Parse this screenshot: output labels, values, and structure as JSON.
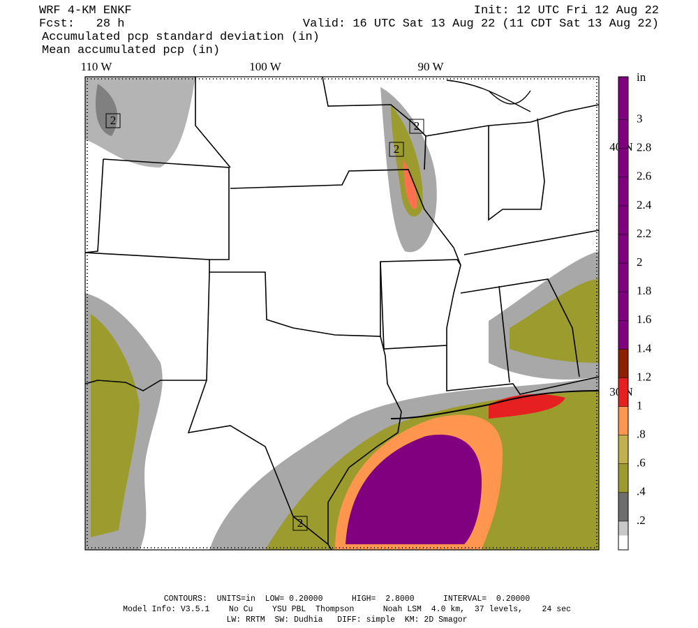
{
  "header": {
    "model": "WRF 4-KM ENKF",
    "init": "Init: 12 UTC Fri 12 Aug 22",
    "fcst": "Fcst:   28 h",
    "valid": "Valid: 16 UTC Sat 13 Aug 22 (11 CDT Sat 13 Aug 22)",
    "field_1": "Accumulated pcp standard deviation (in)",
    "field_2": "Mean accumulated pcp (in)"
  },
  "map": {
    "longitude_labels": [
      "110 W",
      "100 W",
      "90 W"
    ],
    "latitude_labels": [
      "40 N",
      "30 N"
    ],
    "contour_labels": [
      "2",
      "2",
      "2",
      "2"
    ]
  },
  "colorbar": {
    "unit": "in",
    "lim": [
      0,
      3.3
    ],
    "ticks": [
      {
        "value": 0.2,
        "label": ".2"
      },
      {
        "value": 0.4,
        "label": ".4"
      },
      {
        "value": 0.6,
        "label": ".6"
      },
      {
        "value": 0.8,
        "label": ".8"
      },
      1,
      1.2,
      1.4,
      1.6,
      1.8,
      2,
      2.2,
      2.4,
      2.6,
      2.8,
      3
    ],
    "colors": [
      "#c8c8c8",
      "#6e6e6e",
      "#9c9c2e",
      "#c0b050",
      "#ff9650",
      "#e62020",
      "#8c2000",
      "#800080",
      "#800080",
      "#800080",
      "#800080",
      "#800080",
      "#800080",
      "#800080",
      "#800080",
      "#800080"
    ]
  },
  "footer": {
    "contours": "CONTOURS:  UNITS=in  LOW= 0.20000      HIGH=  2.8000      INTERVAL=  0.20000",
    "model_info": "Model Info: V3.5.1    No Cu    YSU PBL  Thompson      Noah LSM  4.0 km,  37 levels,    24 sec",
    "physics": "LW: RRTM  SW: Dudhia   DIFF: simple  KM: 2D Smagor"
  }
}
